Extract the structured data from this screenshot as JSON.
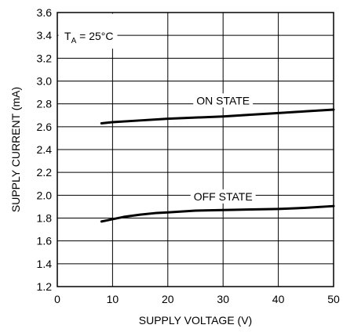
{
  "chart_data": {
    "type": "line",
    "title": "",
    "xlabel": "SUPPLY VOLTAGE (V)",
    "ylabel": "SUPPLY CURRENT (mA)",
    "xlim": [
      0,
      50
    ],
    "ylim": [
      1.2,
      3.6
    ],
    "x_ticks": [
      0,
      10,
      20,
      30,
      40,
      50
    ],
    "x_tick_labels": [
      "0",
      "10",
      "20",
      "30",
      "40",
      "50"
    ],
    "y_ticks": [
      1.2,
      1.4,
      1.6,
      1.8,
      2.0,
      2.2,
      2.4,
      2.6,
      2.8,
      3.0,
      3.2,
      3.4,
      3.6
    ],
    "y_tick_labels": [
      "1.2",
      "1.4",
      "1.6",
      "1.8",
      "2.0",
      "2.2",
      "2.4",
      "2.6",
      "2.8",
      "3.0",
      "3.2",
      "3.4",
      "3.6"
    ],
    "grid": true,
    "condition": {
      "main": "T",
      "sub": "A",
      "rest": " = 25°C"
    },
    "series": [
      {
        "name": "ON STATE",
        "x": [
          8,
          10,
          15,
          20,
          25,
          30,
          35,
          40,
          45,
          50
        ],
        "y": [
          2.63,
          2.64,
          2.655,
          2.67,
          2.68,
          2.69,
          2.705,
          2.72,
          2.735,
          2.75
        ]
      },
      {
        "name": "OFF STATE",
        "x": [
          8,
          9,
          10,
          12,
          15,
          18,
          20,
          25,
          30,
          35,
          40,
          45,
          50
        ],
        "y": [
          1.77,
          1.78,
          1.79,
          1.81,
          1.83,
          1.845,
          1.85,
          1.865,
          1.87,
          1.875,
          1.88,
          1.89,
          1.905
        ]
      }
    ]
  }
}
